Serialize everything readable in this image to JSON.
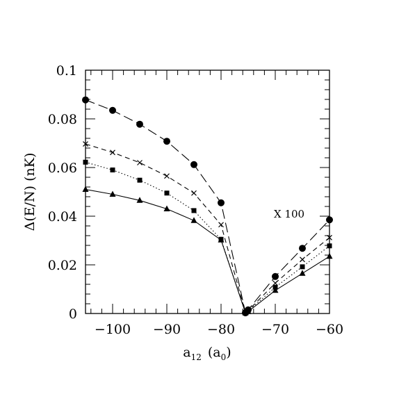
{
  "chart_data": {
    "type": "line",
    "xlabel": "a",
    "xlabel_sub": "12",
    "xlabel_open": "(a",
    "xlabel_unit_sub": "0",
    "xlabel_close": ")",
    "ylabel": "Δ(E/N) (nK)",
    "xlim": [
      -105,
      -60
    ],
    "ylim": [
      0,
      0.1
    ],
    "x_ticks": [
      -100,
      -90,
      -80,
      -70,
      -60
    ],
    "x_tick_labels": [
      "−100",
      "−90",
      "−80",
      "−70",
      "−60"
    ],
    "y_ticks": [
      0,
      0.02,
      0.04,
      0.06,
      0.08,
      0.1
    ],
    "y_tick_labels": [
      "0",
      "0.02",
      "0.04",
      "0.06",
      "0.08",
      "0.1"
    ],
    "grid": false,
    "annotation": "X 100",
    "series": [
      {
        "marker": "circle",
        "line_style": "long-dash",
        "left": {
          "x": [
            -105,
            -100,
            -95,
            -90,
            -85,
            -80,
            -75.5
          ],
          "y": [
            0.0878,
            0.0835,
            0.0778,
            0.0708,
            0.0612,
            0.0455,
            0.0003
          ]
        },
        "right": {
          "x": [
            -75.5,
            -75,
            -70,
            -65,
            -60
          ],
          "y": [
            0.0003,
            0.0015,
            0.0152,
            0.0268,
            0.0385
          ]
        }
      },
      {
        "marker": "cross",
        "line_style": "dash",
        "left": {
          "x": [
            -105,
            -100,
            -95,
            -90,
            -85,
            -80,
            -75.5
          ],
          "y": [
            0.0697,
            0.0662,
            0.062,
            0.0565,
            0.0495,
            0.0365,
            0.0003
          ]
        },
        "right": {
          "x": [
            -75.5,
            -75,
            -70,
            -65,
            -60
          ],
          "y": [
            0.0003,
            0.0012,
            0.0125,
            0.0222,
            0.0312
          ]
        }
      },
      {
        "marker": "square",
        "line_style": "dotted",
        "left": {
          "x": [
            -105,
            -100,
            -95,
            -90,
            -85,
            -80,
            -75.5
          ],
          "y": [
            0.0622,
            0.059,
            0.0548,
            0.0495,
            0.0423,
            0.0305,
            0.0003
          ]
        },
        "right": {
          "x": [
            -75.5,
            -75,
            -70,
            -65,
            -60
          ],
          "y": [
            0.0003,
            0.001,
            0.0108,
            0.0192,
            0.0278
          ]
        }
      },
      {
        "marker": "triangle",
        "line_style": "solid",
        "left": {
          "x": [
            -105,
            -100,
            -95,
            -90,
            -85,
            -80,
            -75.5
          ],
          "y": [
            0.051,
            0.049,
            0.0465,
            0.043,
            0.0382,
            0.0302,
            0.0003
          ]
        },
        "right": {
          "x": [
            -75.5,
            -75,
            -70,
            -65,
            -60
          ],
          "y": [
            0.0003,
            0.0008,
            0.0095,
            0.0165,
            0.0235
          ]
        }
      }
    ]
  }
}
